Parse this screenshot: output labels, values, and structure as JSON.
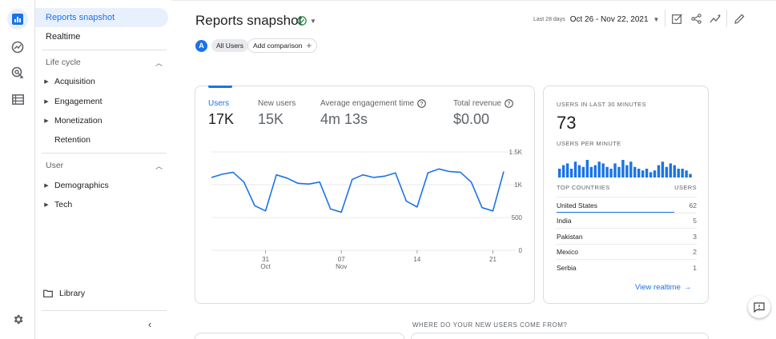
{
  "rail": {
    "icons": [
      "reports-icon",
      "explore-icon",
      "advertising-icon",
      "configure-icon",
      "settings-icon"
    ]
  },
  "sidebar": {
    "reports_snapshot": "Reports snapshot",
    "realtime": "Realtime",
    "lifecycle": {
      "label": "Life cycle",
      "items": [
        "Acquisition",
        "Engagement",
        "Monetization",
        "Retention"
      ]
    },
    "user": {
      "label": "User",
      "items": [
        "Demographics",
        "Tech"
      ]
    },
    "library": "Library"
  },
  "header": {
    "title": "Reports snapshot",
    "date_label": "Last 28 days",
    "date_range": "Oct 26 - Nov 22, 2021"
  },
  "filters": {
    "all_users_avatar": "A",
    "all_users": "All Users",
    "add_comparison": "Add comparison"
  },
  "metrics": [
    {
      "label": "Users",
      "value": "17K"
    },
    {
      "label": "New users",
      "value": "15K"
    },
    {
      "label": "Average engagement time",
      "value": "4m 13s"
    },
    {
      "label": "Total revenue",
      "value": "$0.00"
    }
  ],
  "chart_data": {
    "type": "line",
    "y_ticks": [
      "1.5K",
      "1K",
      "500",
      "0"
    ],
    "ylim": [
      0,
      1500
    ],
    "x_ticks": [
      {
        "day": "31",
        "month": "Oct",
        "index": 5
      },
      {
        "day": "07",
        "month": "Nov",
        "index": 12
      },
      {
        "day": "14",
        "month": "",
        "index": 19
      },
      {
        "day": "21",
        "month": "",
        "index": 26
      }
    ],
    "series": [
      {
        "color": "#1a73e8",
        "values": [
          1110,
          1160,
          1190,
          1040,
          680,
          600,
          1150,
          1100,
          1020,
          1010,
          1040,
          630,
          580,
          1080,
          1150,
          1110,
          1130,
          1180,
          750,
          660,
          1180,
          1240,
          1200,
          1190,
          1040,
          650,
          600,
          1200
        ]
      }
    ]
  },
  "realtime": {
    "users_label": "USERS IN LAST 30 MINUTES",
    "users_value": "73",
    "per_minute_label": "USERS PER MINUTE",
    "per_minute_bars": [
      5,
      7,
      8,
      5,
      9,
      7,
      6,
      10,
      6,
      7,
      9,
      8,
      6,
      5,
      8,
      6,
      10,
      7,
      9,
      6,
      5,
      4,
      5,
      3,
      4,
      7,
      9,
      6,
      8,
      7,
      5,
      5,
      4,
      2
    ],
    "bar_color": "#1a73e8",
    "countries_header": "TOP COUNTRIES",
    "users_header": "USERS",
    "countries": [
      {
        "name": "United States",
        "value": "62"
      },
      {
        "name": "India",
        "value": "5"
      },
      {
        "name": "Pakistan",
        "value": "3"
      },
      {
        "name": "Mexico",
        "value": "2"
      },
      {
        "name": "Serbia",
        "value": "1"
      }
    ],
    "view_realtime": "View realtime"
  },
  "where_heading": "WHERE DO YOUR NEW USERS COME FROM?"
}
